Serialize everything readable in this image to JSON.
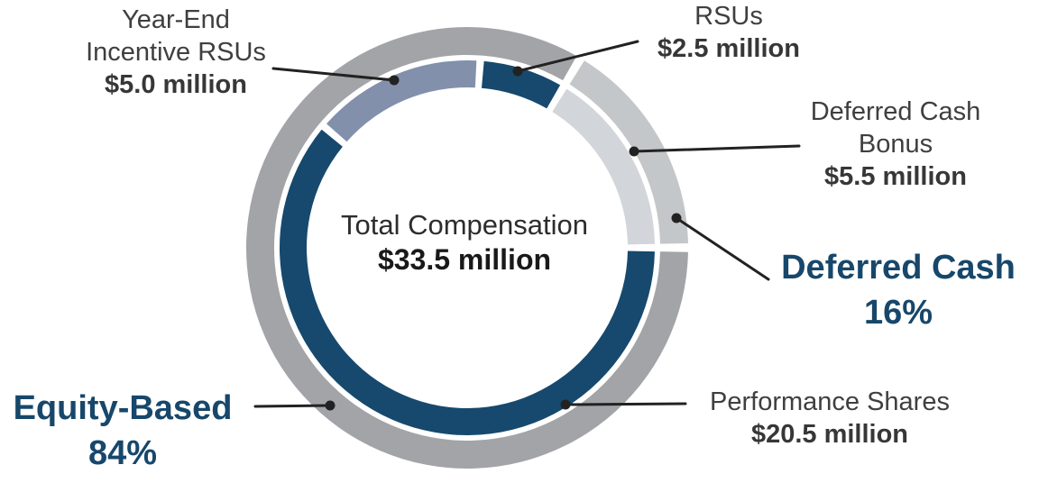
{
  "page": {
    "background": "#ffffff",
    "description": "Double-ring donut chart of total compensation mix with callout labels"
  },
  "chart_data": {
    "type": "pie",
    "subtype": "double-ring-donut",
    "title": "Total Compensation",
    "center_total_label": "$33.5 million",
    "total_value": 33.5,
    "start_angle_deg": 4,
    "inner_ring_segments": [
      {
        "label": "RSUs",
        "value": 2.5,
        "amount_label": "$2.5 million",
        "color": "#16496d"
      },
      {
        "label": "Deferred Cash Bonus",
        "value": 5.5,
        "amount_label": "$5.5 million",
        "color": "#d2d5d9"
      },
      {
        "label": "Performance Shares",
        "value": 20.5,
        "amount_label": "$20.5 million",
        "color": "#16496d"
      },
      {
        "label": "Year-End Incentive RSUs",
        "value": 5.0,
        "amount_label": "$5.0 million",
        "color": "#8290ac"
      }
    ],
    "outer_ring_segments": [
      {
        "label": "Deferred Cash",
        "value": 5.5,
        "pct_label": "16%",
        "color": "#c4c7c9"
      },
      {
        "label": "Equity-Based",
        "value": 28.0,
        "pct_label": "84%",
        "color": "#a2a4a7"
      }
    ],
    "outer_start_after_value": 2.5,
    "legend_position": "callout labels with leader lines",
    "leader_line_color": "#222222",
    "group_label_color": "#17476b",
    "detail_label_color": "#3f3f3f"
  },
  "labels": {
    "year_end_rsus": {
      "line1": "Year-End",
      "line2": "Incentive RSUs",
      "amount": "$5.0 million"
    },
    "rsus": {
      "line1": "RSUs",
      "amount": "$2.5 million"
    },
    "deferred_cash_bonus": {
      "line1": "Deferred Cash",
      "line2": "Bonus",
      "amount": "$5.5 million"
    },
    "deferred_cash_group": {
      "line1": "Deferred Cash",
      "pct": "16%"
    },
    "equity_group": {
      "line1": "Equity-Based",
      "pct": "84%"
    },
    "performance_shares": {
      "line1": "Performance Shares",
      "amount": "$20.5 million"
    },
    "center": {
      "title": "Total Compensation",
      "amount": "$33.5 million"
    }
  }
}
